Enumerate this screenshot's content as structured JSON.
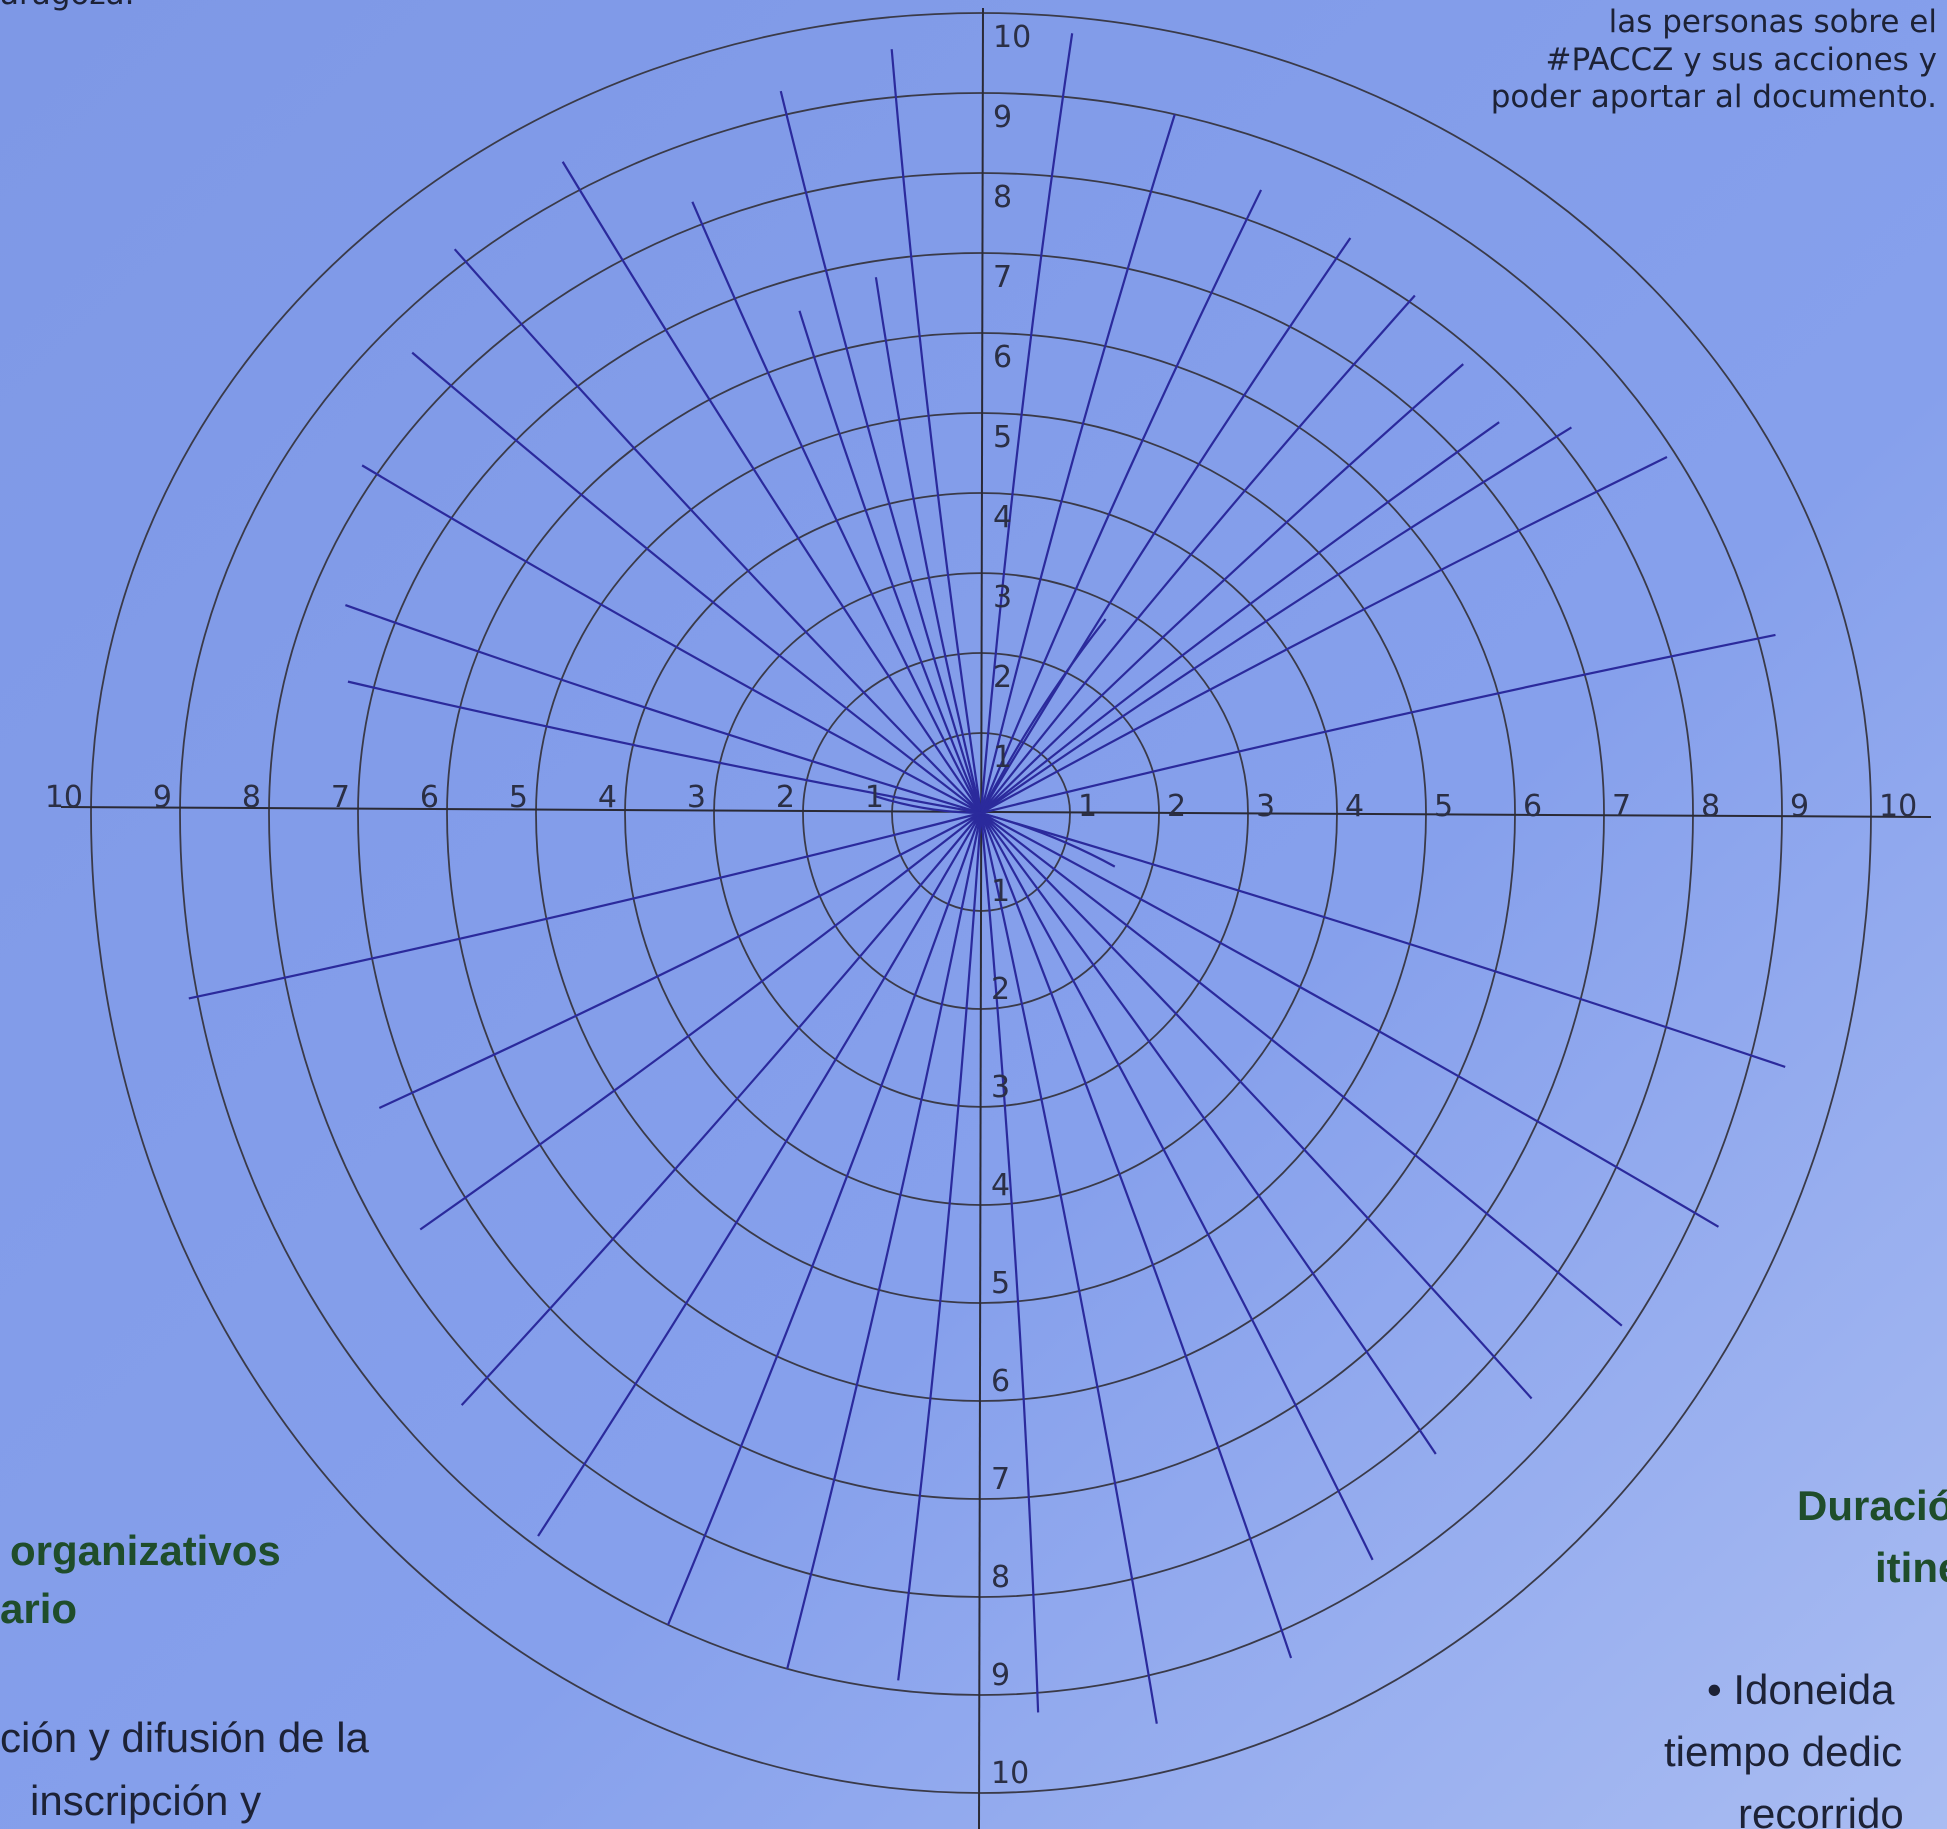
{
  "header": {
    "top_left": "aragoza.",
    "top_right": [
      "las personas sobre el",
      "#PACCZ y sus acciones y",
      "poder aportar al documento."
    ]
  },
  "diagram": {
    "scale_labels": [
      "1",
      "2",
      "3",
      "4",
      "5",
      "6",
      "7",
      "8",
      "9",
      "10"
    ]
  },
  "left_section": {
    "title": [
      "organizativos",
      "ario"
    ],
    "text": [
      "ción y difusión de la",
      "inscripción y"
    ]
  },
  "right_section": {
    "title": [
      "Duració",
      "itine"
    ],
    "text": [
      "• Idoneida",
      "tiempo dedic",
      "recorrido"
    ]
  }
}
